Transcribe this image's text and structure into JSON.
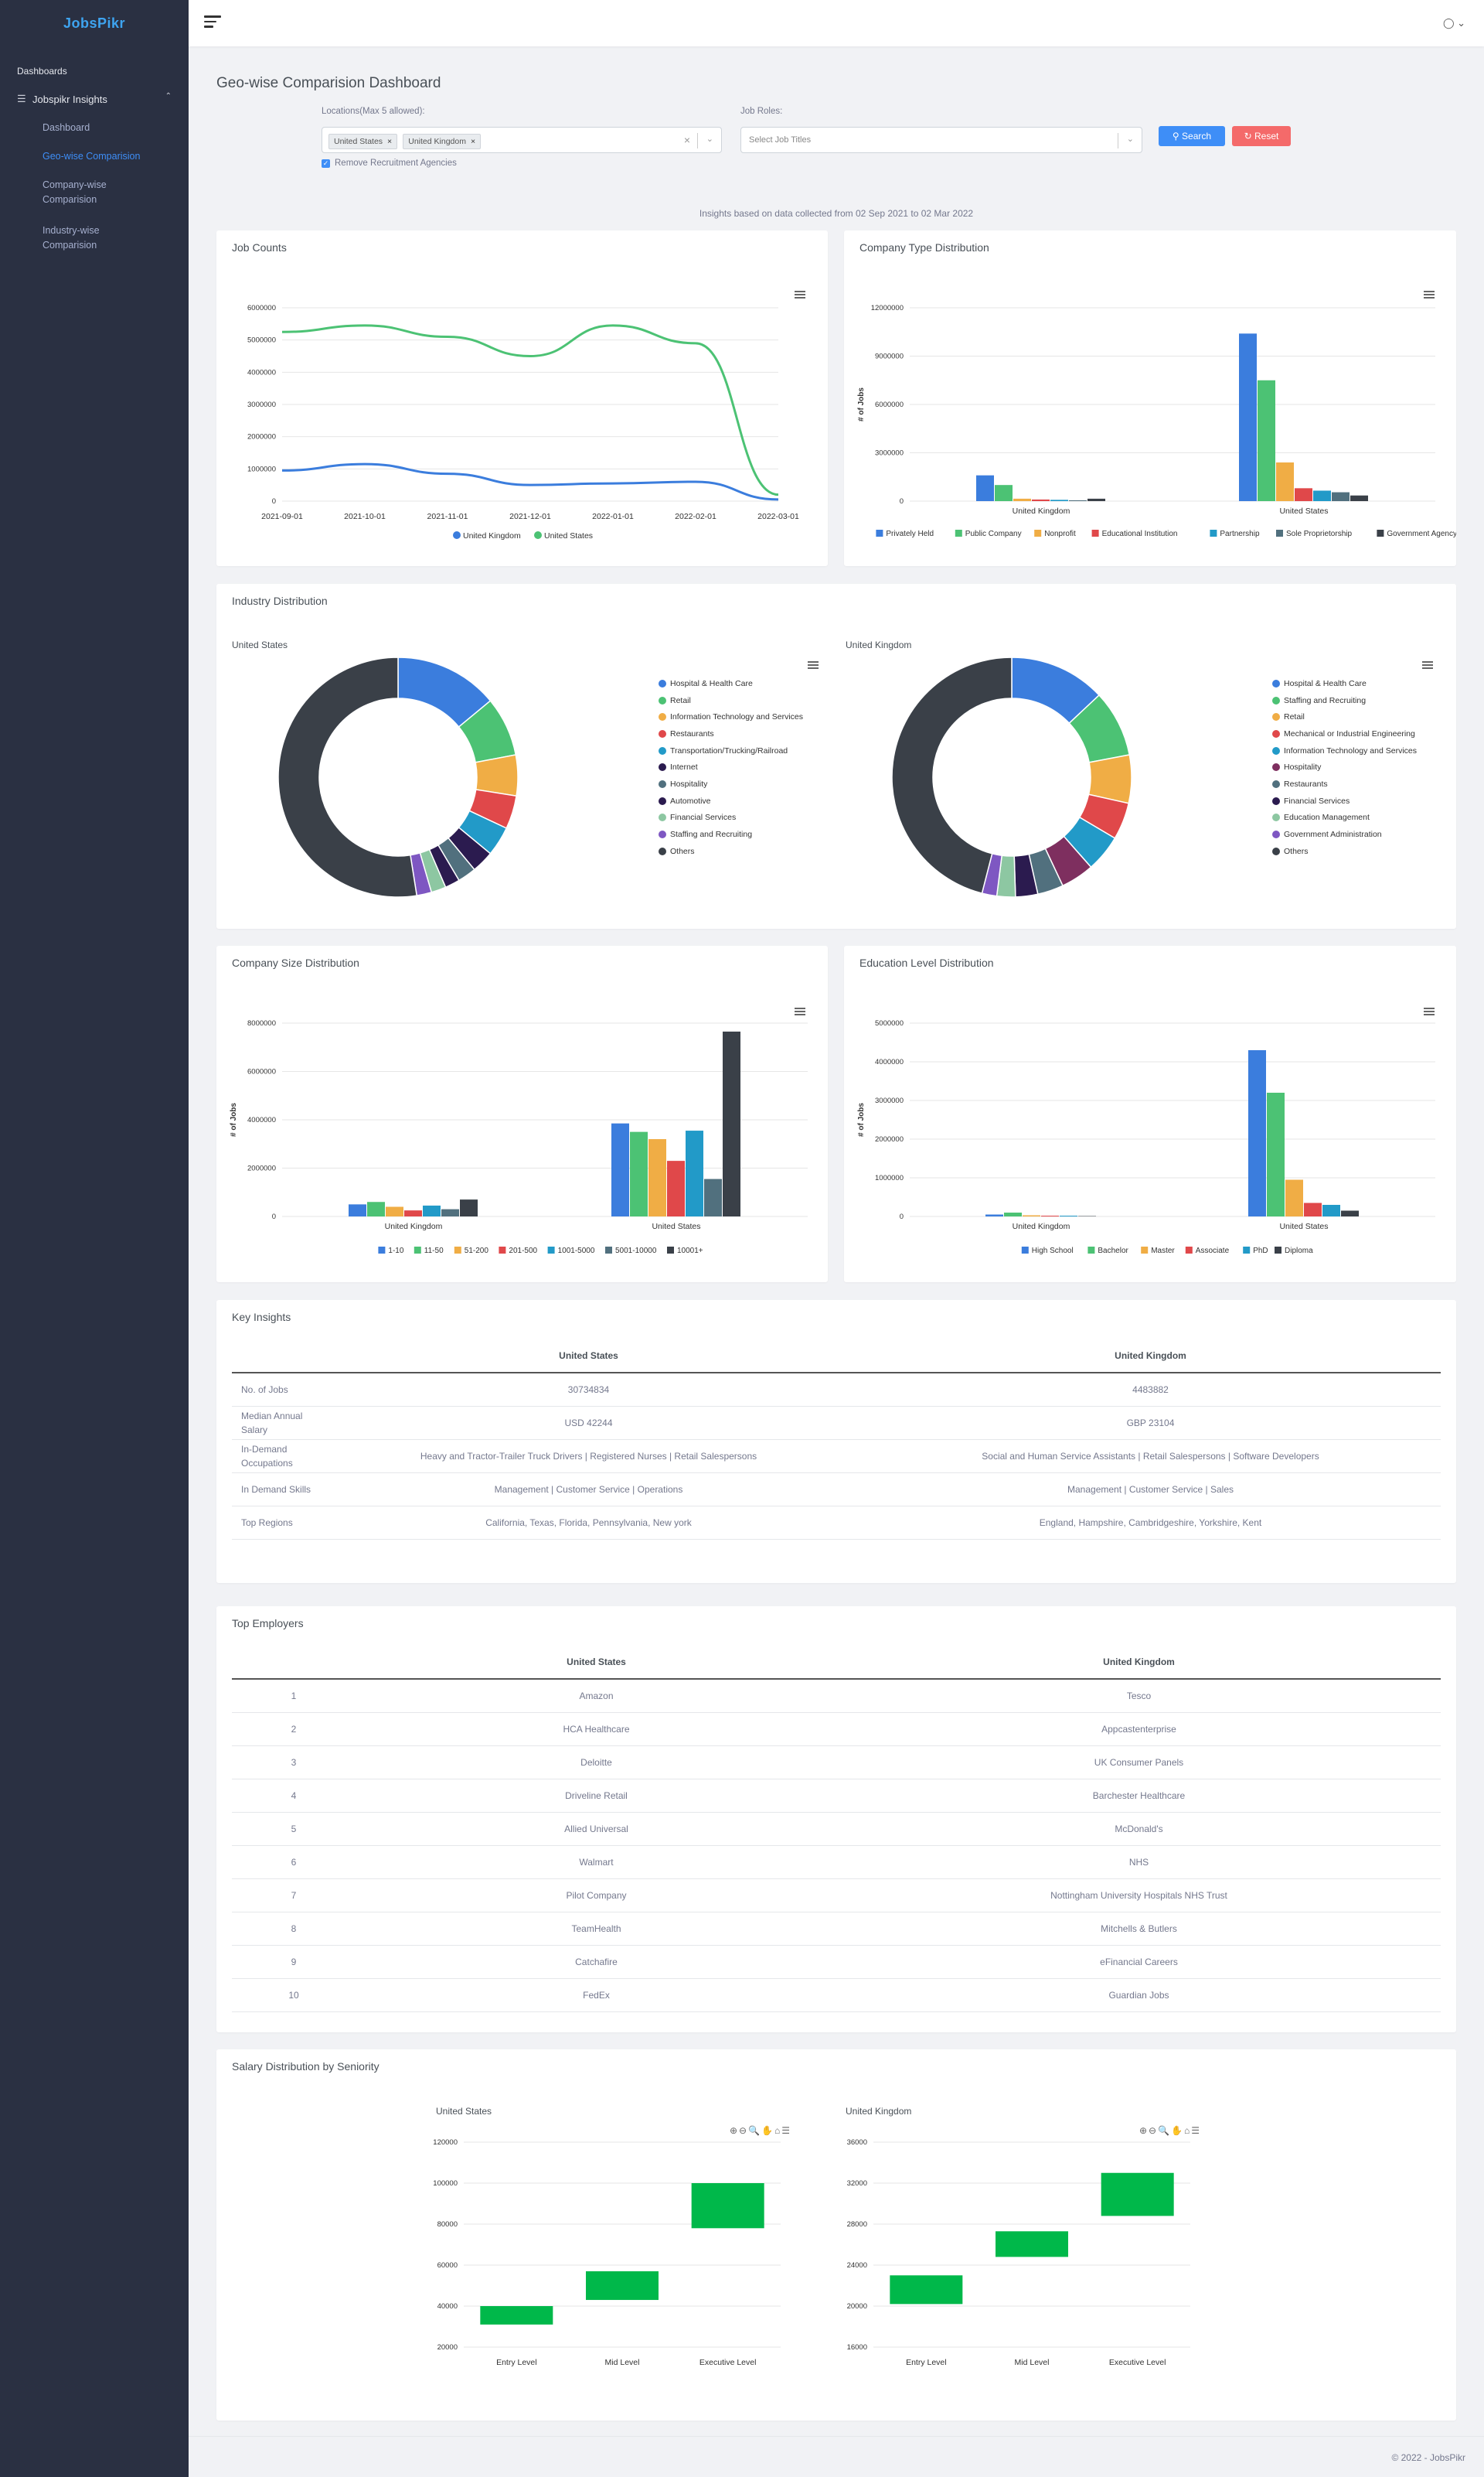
{
  "app": {
    "logo": "JobsPikr",
    "copyright": "© 2022 - JobsPikr"
  },
  "sidebar": {
    "section": "Dashboards",
    "group": "Jobspikr Insights",
    "items": [
      {
        "label": "Dashboard"
      },
      {
        "label": "Geo-wise Comparision"
      },
      {
        "label": "Company-wise Comparision"
      },
      {
        "label": "Industry-wise Comparision"
      }
    ]
  },
  "page": {
    "title": "Geo-wise Comparision Dashboard",
    "note": "Insights based on data collected from 02 Sep 2021 to 02 Mar 2022"
  },
  "filters": {
    "locations_label": "Locations(Max 5 allowed):",
    "locations": [
      "United States",
      "United Kingdom"
    ],
    "roles_label": "Job Roles:",
    "roles_placeholder": "Select Job Titles",
    "remove_agencies": "Remove Recruitment Agencies",
    "search": "Search",
    "reset": "Reset"
  },
  "colors": {
    "blue": "#3b7ddd",
    "green": "#4cc274",
    "orange": "#f0ad45",
    "red": "#e0484a",
    "teal": "#229ac8",
    "slate": "#51707e",
    "dark": "#3a4048",
    "navy": "#2b1b4f",
    "purple": "#7e57c2",
    "lightgreen": "#8dc7a2",
    "accent": "#3e8ef7"
  },
  "cards": {
    "job_counts": "Job Counts",
    "company_type": "Company Type Distribution",
    "industry": "Industry Distribution",
    "company_size": "Company Size Distribution",
    "education": "Education Level Distribution",
    "key_insights": "Key Insights",
    "top_employers": "Top Employers",
    "salary": "Salary Distribution by Seniority"
  },
  "chart_data": [
    {
      "type": "line",
      "title": "Job Counts",
      "x": [
        "2021-09-01",
        "2021-10-01",
        "2021-11-01",
        "2021-12-01",
        "2022-01-01",
        "2022-02-01",
        "2022-03-01"
      ],
      "ylim": [
        0,
        6000000
      ],
      "yticks": [
        "0",
        "1000000",
        "2000000",
        "3000000",
        "4000000",
        "5000000",
        "6000000"
      ],
      "series": [
        {
          "name": "United Kingdom",
          "color": "#3b7ddd",
          "values": [
            950000,
            1150000,
            850000,
            500000,
            550000,
            600000,
            50000
          ]
        },
        {
          "name": "United States",
          "color": "#4cc274",
          "values": [
            5250000,
            5450000,
            5100000,
            4500000,
            5450000,
            4900000,
            200000
          ]
        }
      ]
    },
    {
      "type": "bar",
      "title": "Company Type Distribution",
      "ylabel": "# of Jobs",
      "ylim": [
        0,
        12000000
      ],
      "yticks": [
        "0",
        "3000000",
        "6000000",
        "9000000",
        "12000000"
      ],
      "categories": [
        "United Kingdom",
        "United States"
      ],
      "series": [
        {
          "name": "Privately Held",
          "color": "#3b7ddd",
          "values": [
            1600000,
            10400000
          ]
        },
        {
          "name": "Public Company",
          "color": "#4cc274",
          "values": [
            1000000,
            7500000
          ]
        },
        {
          "name": "Nonprofit",
          "color": "#f0ad45",
          "values": [
            150000,
            2400000
          ]
        },
        {
          "name": "Educational Institution",
          "color": "#e0484a",
          "values": [
            100000,
            800000
          ]
        },
        {
          "name": "Partnership",
          "color": "#229ac8",
          "values": [
            80000,
            650000
          ]
        },
        {
          "name": "Sole Proprietorship",
          "color": "#51707e",
          "values": [
            50000,
            550000
          ]
        },
        {
          "name": "Government Agency",
          "color": "#3a4048",
          "values": [
            150000,
            350000
          ]
        }
      ]
    },
    {
      "type": "pie",
      "title": "United States",
      "labels": [
        "Hospital & Health Care",
        "Retail",
        "Information Technology and Services",
        "Restaurants",
        "Transportation/Trucking/Railroad",
        "Internet",
        "Hospitality",
        "Automotive",
        "Financial Services",
        "Staffing and Recruiting",
        "Others"
      ],
      "colors": [
        "#3b7ddd",
        "#4cc274",
        "#f0ad45",
        "#e0484a",
        "#229ac8",
        "#2b1b4f",
        "#51707e",
        "#2b1b4f",
        "#8dc7a2",
        "#7e57c2",
        "#3a4048"
      ],
      "values": [
        14,
        8,
        5.5,
        4.5,
        4,
        3,
        2.5,
        2,
        2,
        2,
        52.5
      ]
    },
    {
      "type": "pie",
      "title": "United Kingdom",
      "labels": [
        "Hospital & Health Care",
        "Staffing and Recruiting",
        "Retail",
        "Mechanical or Industrial Engineering",
        "Information Technology and Services",
        "Hospitality",
        "Restaurants",
        "Financial Services",
        "Education Management",
        "Government Administration",
        "Others"
      ],
      "colors": [
        "#3b7ddd",
        "#4cc274",
        "#f0ad45",
        "#e0484a",
        "#229ac8",
        "#7e2f5f",
        "#51707e",
        "#2b1b4f",
        "#8dc7a2",
        "#7e57c2",
        "#3a4048"
      ],
      "values": [
        13,
        9,
        6.5,
        5,
        5,
        4.5,
        3.5,
        3,
        2.5,
        2,
        46
      ]
    },
    {
      "type": "bar",
      "title": "Company Size Distribution",
      "ylabel": "# of Jobs",
      "ylim": [
        0,
        8000000
      ],
      "yticks": [
        "0",
        "2000000",
        "4000000",
        "6000000",
        "8000000"
      ],
      "categories": [
        "United Kingdom",
        "United States"
      ],
      "series": [
        {
          "name": "1-10",
          "color": "#3b7ddd",
          "values": [
            500000,
            3850000
          ]
        },
        {
          "name": "11-50",
          "color": "#4cc274",
          "values": [
            600000,
            3500000
          ]
        },
        {
          "name": "51-200",
          "color": "#f0ad45",
          "values": [
            400000,
            3200000
          ]
        },
        {
          "name": "201-500",
          "color": "#e0484a",
          "values": [
            250000,
            2300000
          ]
        },
        {
          "name": "1001-5000",
          "color": "#229ac8",
          "values": [
            450000,
            3550000
          ]
        },
        {
          "name": "5001-10000",
          "color": "#51707e",
          "values": [
            300000,
            1550000
          ]
        },
        {
          "name": "10001+",
          "color": "#3a4048",
          "values": [
            700000,
            7650000
          ]
        }
      ]
    },
    {
      "type": "bar",
      "title": "Education Level Distribution",
      "ylabel": "# of Jobs",
      "ylim": [
        0,
        5000000
      ],
      "yticks": [
        "0",
        "1000000",
        "2000000",
        "3000000",
        "4000000",
        "5000000"
      ],
      "categories": [
        "United Kingdom",
        "United States"
      ],
      "series": [
        {
          "name": "High School",
          "color": "#3b7ddd",
          "values": [
            50000,
            4300000
          ]
        },
        {
          "name": "Bachelor",
          "color": "#4cc274",
          "values": [
            100000,
            3200000
          ]
        },
        {
          "name": "Master",
          "color": "#f0ad45",
          "values": [
            30000,
            950000
          ]
        },
        {
          "name": "Associate",
          "color": "#e0484a",
          "values": [
            20000,
            350000
          ]
        },
        {
          "name": "PhD",
          "color": "#229ac8",
          "values": [
            20000,
            300000
          ]
        },
        {
          "name": "Diploma",
          "color": "#3a4048",
          "values": [
            10000,
            150000
          ]
        }
      ]
    },
    {
      "type": "bar",
      "title": "United States",
      "ylim": [
        20000,
        120000
      ],
      "yticks": [
        "20000",
        "40000",
        "60000",
        "80000",
        "100000",
        "120000"
      ],
      "categories": [
        "Entry Level",
        "Mid Level",
        "Executive Level"
      ],
      "ranges": [
        [
          31000,
          40000
        ],
        [
          43000,
          57000
        ],
        [
          78000,
          100000
        ]
      ],
      "color": "#00b84a"
    },
    {
      "type": "bar",
      "title": "United Kingdom",
      "ylim": [
        16000,
        36000
      ],
      "yticks": [
        "16000",
        "20000",
        "24000",
        "28000",
        "32000",
        "36000"
      ],
      "categories": [
        "Entry Level",
        "Mid Level",
        "Executive Level"
      ],
      "ranges": [
        [
          20200,
          23000
        ],
        [
          24800,
          27300
        ],
        [
          28800,
          33000
        ]
      ],
      "color": "#00b84a"
    }
  ],
  "key_insights": {
    "headers": [
      "",
      "United States",
      "United Kingdom"
    ],
    "rows": [
      [
        "No. of Jobs",
        "30734834",
        "4483882"
      ],
      [
        "Median Annual Salary",
        "USD 42244",
        "GBP 23104"
      ],
      [
        "In-Demand Occupations",
        "Heavy and Tractor-Trailer Truck Drivers | Registered Nurses | Retail Salespersons",
        "Social and Human Service Assistants | Retail Salespersons | Software Developers"
      ],
      [
        "In Demand Skills",
        "Management | Customer Service | Operations",
        "Management | Customer Service | Sales"
      ],
      [
        "Top Regions",
        "California, Texas, Florida, Pennsylvania, New york",
        "England, Hampshire, Cambridgeshire, Yorkshire, Kent"
      ]
    ]
  },
  "top_employers": {
    "headers": [
      "",
      "United States",
      "United Kingdom"
    ],
    "rows": [
      [
        "1",
        "Amazon",
        "Tesco"
      ],
      [
        "2",
        "HCA Healthcare",
        "Appcastenterprise"
      ],
      [
        "3",
        "Deloitte",
        "UK Consumer Panels"
      ],
      [
        "4",
        "Driveline Retail",
        "Barchester Healthcare"
      ],
      [
        "5",
        "Allied Universal",
        "McDonald's"
      ],
      [
        "6",
        "Walmart",
        "NHS"
      ],
      [
        "7",
        "Pilot Company",
        "Nottingham University Hospitals NHS Trust"
      ],
      [
        "8",
        "TeamHealth",
        "Mitchells & Butlers"
      ],
      [
        "9",
        "Catchafire",
        "eFinancial Careers"
      ],
      [
        "10",
        "FedEx",
        "Guardian Jobs"
      ]
    ]
  }
}
